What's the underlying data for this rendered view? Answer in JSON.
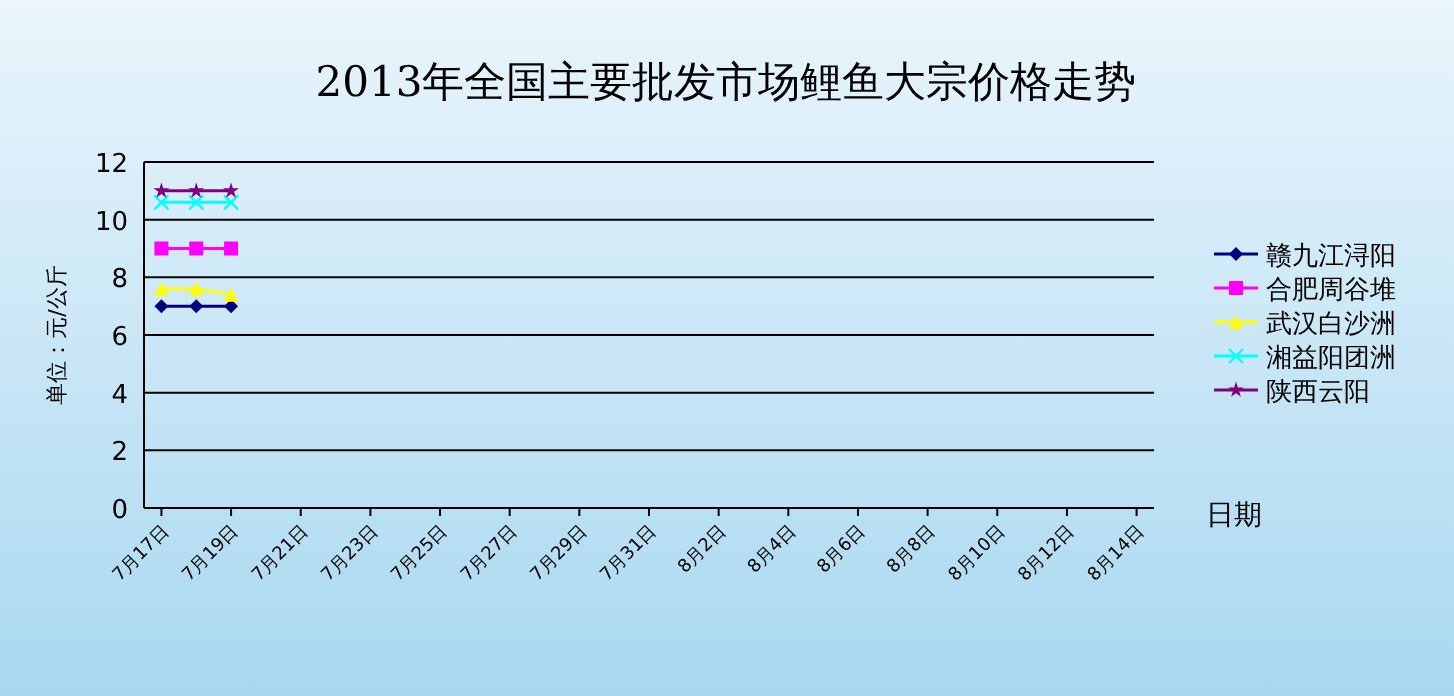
{
  "chart_data": {
    "type": "line",
    "title": "2013年全国主要批发市场鲤鱼大宗价格走势",
    "xlabel": "日期",
    "ylabel": "单位：元/公斤",
    "categories": [
      "7月17日",
      null,
      "7月19日",
      null,
      "7月21日",
      null,
      "7月23日",
      null,
      "7月25日",
      null,
      "7月27日",
      null,
      "7月29日",
      null,
      "7月31日",
      null,
      "8月2日",
      null,
      "8月4日",
      null,
      "8月6日",
      null,
      "8月8日",
      null,
      "8月10日",
      null,
      "8月12日",
      null,
      "8月14日"
    ],
    "series": [
      {
        "name": "赣九江浔阳",
        "color": "#000080",
        "marker": "diamond",
        "values": [
          7,
          7,
          7,
          null,
          null,
          null,
          null,
          null,
          null,
          null,
          null,
          null,
          null,
          null,
          null,
          null,
          null,
          null,
          null,
          null,
          null,
          null,
          null,
          null,
          null,
          null,
          null,
          null,
          null
        ]
      },
      {
        "name": "合肥周谷堆",
        "color": "#ff00ff",
        "marker": "square",
        "values": [
          9,
          9,
          9,
          null,
          null,
          null,
          null,
          null,
          null,
          null,
          null,
          null,
          null,
          null,
          null,
          null,
          null,
          null,
          null,
          null,
          null,
          null,
          null,
          null,
          null,
          null,
          null,
          null,
          null
        ]
      },
      {
        "name": "武汉白沙洲",
        "color": "#ffff00",
        "marker": "triangle",
        "values": [
          7.6,
          7.6,
          7.4,
          null,
          null,
          null,
          null,
          null,
          null,
          null,
          null,
          null,
          null,
          null,
          null,
          null,
          null,
          null,
          null,
          null,
          null,
          null,
          null,
          null,
          null,
          null,
          null,
          null,
          null
        ]
      },
      {
        "name": "湘益阳团洲",
        "color": "#00ffff",
        "marker": "cross",
        "values": [
          10.6,
          10.6,
          10.6,
          null,
          null,
          null,
          null,
          null,
          null,
          null,
          null,
          null,
          null,
          null,
          null,
          null,
          null,
          null,
          null,
          null,
          null,
          null,
          null,
          null,
          null,
          null,
          null,
          null,
          null
        ]
      },
      {
        "name": "陕西云阳",
        "color": "#800080",
        "marker": "star",
        "values": [
          11,
          11,
          11,
          null,
          null,
          null,
          null,
          null,
          null,
          null,
          null,
          null,
          null,
          null,
          null,
          null,
          null,
          null,
          null,
          null,
          null,
          null,
          null,
          null,
          null,
          null,
          null,
          null,
          null
        ]
      }
    ],
    "ylim": [
      0,
      12
    ],
    "yticks": [
      0,
      2,
      4,
      6,
      8,
      10,
      12
    ],
    "grid": "y",
    "legend": "right",
    "line_style": "solid"
  }
}
